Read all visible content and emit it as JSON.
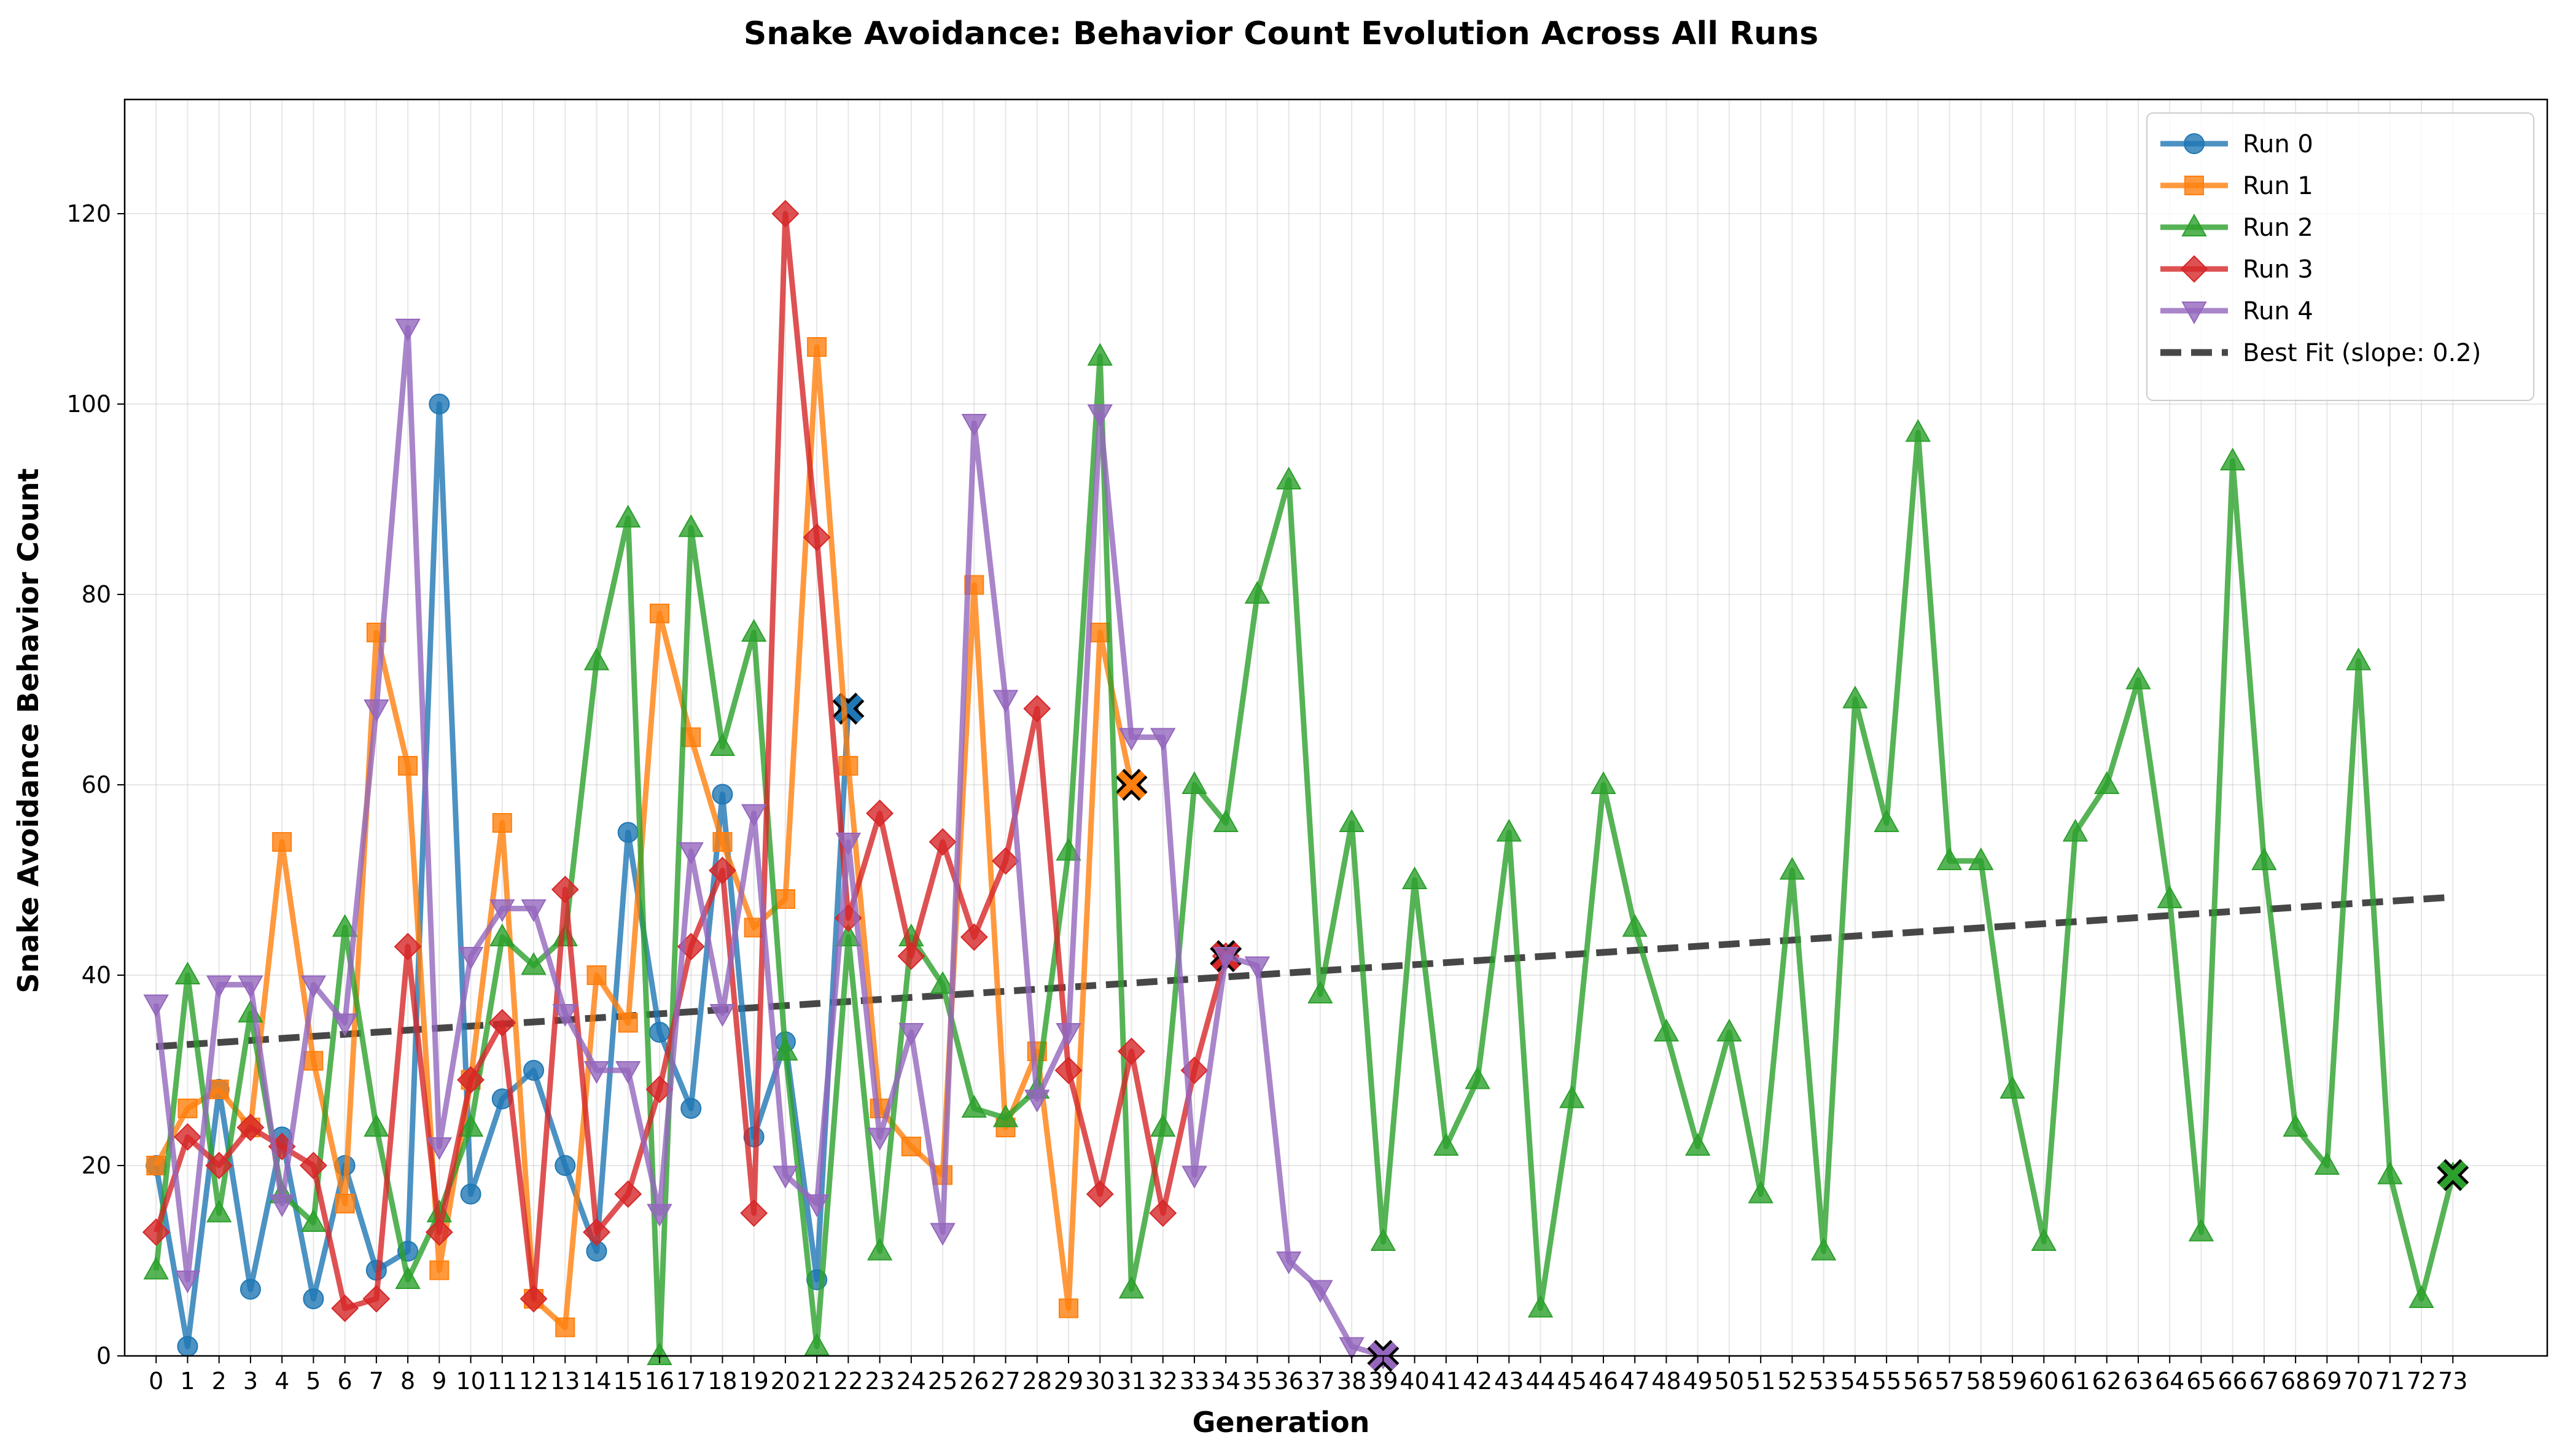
{
  "chart_data": {
    "type": "line",
    "title": "Snake Avoidance: Behavior Count Evolution Across All Runs",
    "xlabel": "Generation",
    "ylabel": "Snake Avoidance Behavior Count",
    "xlim": [
      -1,
      76
    ],
    "ylim": [
      0,
      132
    ],
    "x_ticks": [
      0,
      1,
      2,
      3,
      4,
      5,
      6,
      7,
      8,
      9,
      10,
      11,
      12,
      13,
      14,
      15,
      16,
      17,
      18,
      19,
      20,
      21,
      22,
      23,
      24,
      25,
      26,
      27,
      28,
      29,
      30,
      31,
      32,
      33,
      34,
      35,
      36,
      37,
      38,
      39,
      40,
      41,
      42,
      43,
      44,
      45,
      46,
      47,
      48,
      49,
      50,
      51,
      52,
      53,
      54,
      55,
      56,
      57,
      58,
      59,
      60,
      61,
      62,
      63,
      64,
      65,
      66,
      67,
      68,
      69,
      70,
      71,
      72,
      73
    ],
    "y_ticks": [
      0,
      20,
      40,
      60,
      80,
      100,
      120
    ],
    "grid": true,
    "legend_position": "top-right",
    "series": [
      {
        "name": "Run 0",
        "color": "#1f77b4",
        "marker": "circle",
        "values": [
          20,
          1,
          28,
          7,
          23,
          6,
          20,
          9,
          11,
          100,
          17,
          27,
          30,
          20,
          11,
          55,
          34,
          26,
          59,
          23,
          33,
          8,
          68
        ]
      },
      {
        "name": "Run 1",
        "color": "#ff7f0e",
        "marker": "square",
        "values": [
          20,
          26,
          28,
          24,
          54,
          31,
          16,
          76,
          62,
          9,
          29,
          56,
          6,
          3,
          40,
          35,
          78,
          65,
          54,
          45,
          48,
          106,
          62,
          26,
          22,
          19,
          81,
          24,
          32,
          5,
          76,
          60
        ]
      },
      {
        "name": "Run 2",
        "color": "#2ca02c",
        "marker": "triangle-up",
        "values": [
          9,
          40,
          15,
          36,
          17,
          14,
          45,
          24,
          8,
          15,
          24,
          44,
          41,
          44,
          73,
          88,
          0,
          87,
          64,
          76,
          32,
          1,
          44,
          11,
          44,
          39,
          26,
          25,
          28,
          53,
          105,
          7,
          24,
          60,
          56,
          80,
          92,
          38,
          56,
          12,
          50,
          22,
          29,
          55,
          5,
          27,
          60,
          45,
          34,
          22,
          34,
          17,
          51,
          11,
          69,
          56,
          97,
          52,
          52,
          28,
          12,
          55,
          60,
          71,
          48,
          13,
          94,
          52,
          24,
          20,
          73,
          19,
          6,
          19
        ]
      },
      {
        "name": "Run 3",
        "color": "#d62728",
        "marker": "diamond",
        "values": [
          13,
          23,
          20,
          24,
          22,
          20,
          5,
          6,
          43,
          13,
          29,
          35,
          6,
          49,
          13,
          17,
          28,
          43,
          51,
          15,
          120,
          86,
          46,
          57,
          42,
          54,
          44,
          52,
          68,
          30,
          17,
          32,
          15,
          30,
          42
        ]
      },
      {
        "name": "Run 4",
        "color": "#9467bd",
        "marker": "triangle-down",
        "values": [
          37,
          8,
          39,
          39,
          16,
          39,
          35,
          68,
          108,
          22,
          42,
          47,
          47,
          36,
          30,
          30,
          15,
          53,
          36,
          57,
          19,
          16,
          54,
          23,
          34,
          13,
          98,
          69,
          27,
          34,
          99,
          65,
          65,
          19,
          42,
          41,
          10,
          7,
          1,
          0
        ]
      }
    ],
    "best_fit": {
      "name": "Best Fit (slope: 0.2)",
      "color": "#333333",
      "slope": 0.2,
      "start": 32.5,
      "end": 48.2,
      "x_end": 73
    },
    "legend": [
      "Run 0",
      "Run 1",
      "Run 2",
      "Run 3",
      "Run 4",
      "Best Fit (slope: 0.2)"
    ]
  }
}
